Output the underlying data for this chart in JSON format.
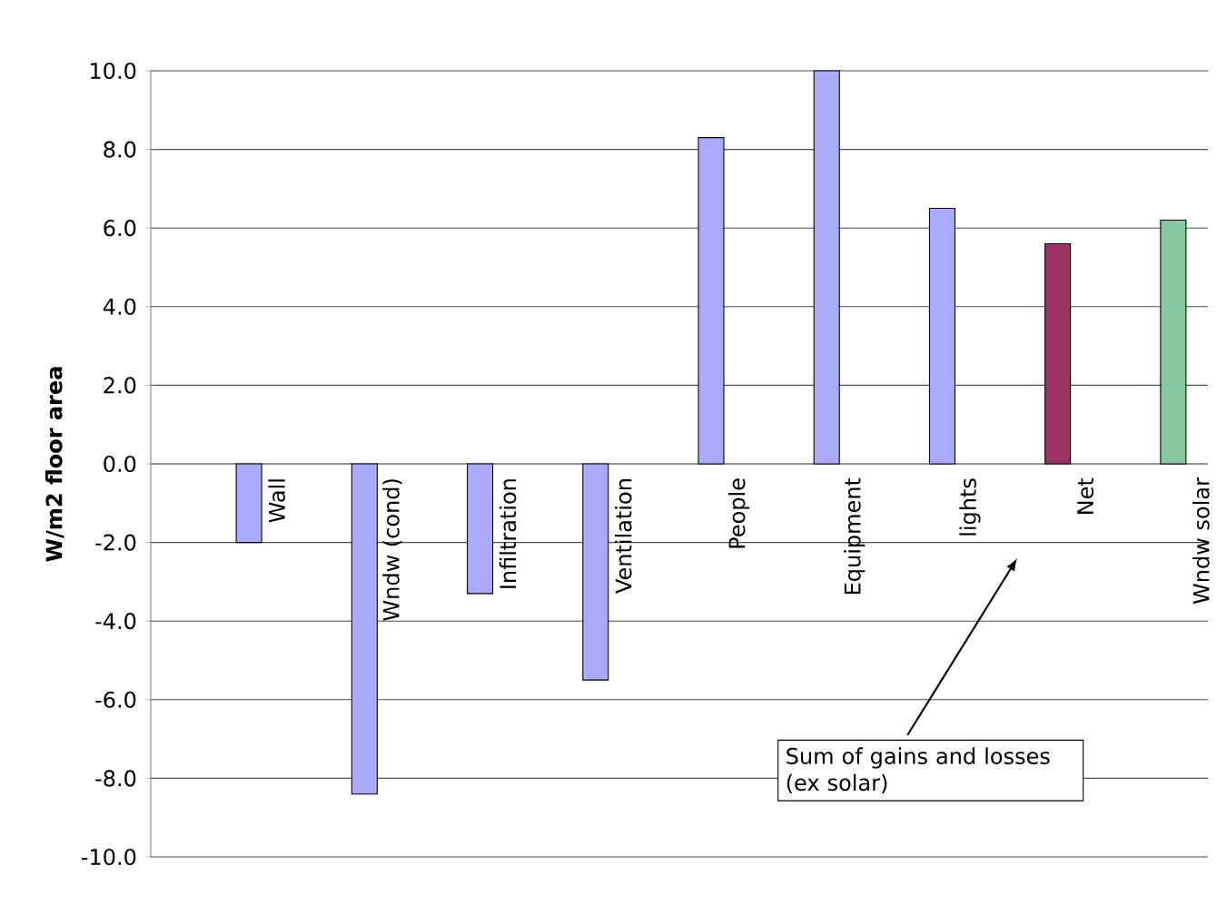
{
  "chart_data": {
    "type": "bar",
    "ylabel": "W/m2 floor area",
    "categories": [
      "Wall",
      "Wndw (cond)",
      "Infiltration",
      "Ventilation",
      "People",
      "Equipment",
      "lights",
      "Net",
      "Wndw solar"
    ],
    "values": [
      -2.0,
      -8.4,
      -3.3,
      -5.5,
      8.3,
      10.0,
      6.5,
      5.6,
      6.2
    ],
    "colors": [
      "#aaaaff",
      "#aaaaff",
      "#aaaaff",
      "#aaaaff",
      "#aaaaff",
      "#aaaaff",
      "#aaaaff",
      "#993366",
      "#88c8a0"
    ],
    "ylim": [
      -10,
      10
    ],
    "yticks": [
      {
        "value": -10,
        "label": "-10.0"
      },
      {
        "value": -8,
        "label": "-8.0"
      },
      {
        "value": -6,
        "label": "-6.0"
      },
      {
        "value": -4,
        "label": "-4.0"
      },
      {
        "value": -2,
        "label": "-2.0"
      },
      {
        "value": 0,
        "label": "0.0"
      },
      {
        "value": 2,
        "label": "2.0"
      },
      {
        "value": 4,
        "label": "4.0"
      },
      {
        "value": 6,
        "label": "6.0"
      },
      {
        "value": 8,
        "label": "8.0"
      },
      {
        "value": 10,
        "label": "10.0"
      }
    ],
    "grid": "y",
    "annotations": [
      "Sum of gains and losses (ex solar)"
    ]
  }
}
